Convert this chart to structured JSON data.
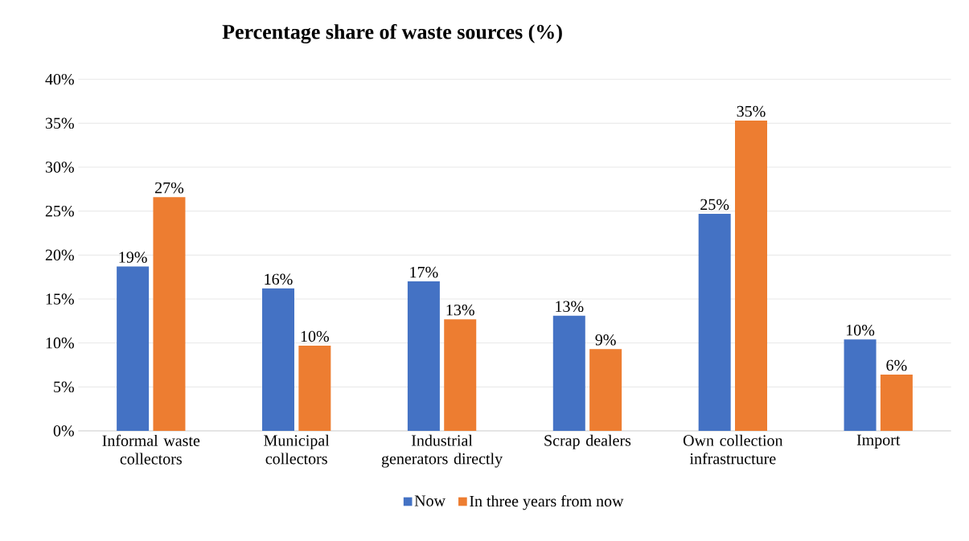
{
  "chart_data": {
    "type": "bar",
    "title": "Percentage share of waste sources (%)",
    "categories": [
      "Informal waste collectors",
      "Municipal collectors",
      "Industrial generators directly",
      "Scrap dealers",
      "Own collection infrastructure",
      "Import"
    ],
    "series": [
      {
        "name": "Now",
        "color": "#4472c4",
        "values": [
          18.7,
          16.2,
          17.0,
          13.1,
          24.7,
          10.4
        ],
        "value_labels": [
          "19%",
          "16%",
          "17%",
          "13%",
          "25%",
          "10%"
        ]
      },
      {
        "name": "In three years from now",
        "color": "#ed7d31",
        "values": [
          26.6,
          9.7,
          12.7,
          9.3,
          35.3,
          6.4
        ],
        "value_labels": [
          "27%",
          "10%",
          "13%",
          "9%",
          "35%",
          "6%"
        ]
      }
    ],
    "ylim": [
      0,
      40
    ],
    "yticks": [
      {
        "value": 0,
        "label": "0%"
      },
      {
        "value": 5,
        "label": "5%"
      },
      {
        "value": 10,
        "label": "10%"
      },
      {
        "value": 15,
        "label": "15%"
      },
      {
        "value": 20,
        "label": "20%"
      },
      {
        "value": 25,
        "label": "25%"
      },
      {
        "value": 30,
        "label": "30%"
      },
      {
        "value": 35,
        "label": "35%"
      },
      {
        "value": 40,
        "label": "40%"
      }
    ],
    "grid": "y",
    "legend": "bottom"
  }
}
